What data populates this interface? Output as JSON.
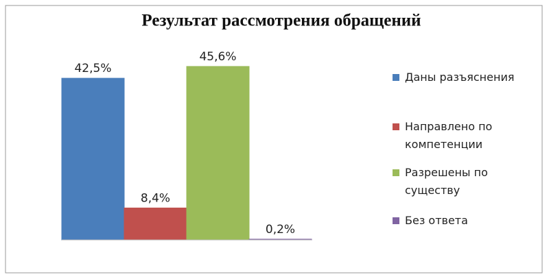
{
  "chart_data": {
    "type": "bar",
    "title": "Результат рассмотрения обращений",
    "series": [
      {
        "name": "Даны разъяснения",
        "color": "#4a7ebb",
        "values": [
          42.5
        ],
        "value_labels": [
          "42,5%"
        ]
      },
      {
        "name": "Направлено по компетенции",
        "color": "#c0504d",
        "values": [
          8.4
        ],
        "value_labels": [
          "8,4%"
        ]
      },
      {
        "name": "Разрешены по существу",
        "color": "#9bbb59",
        "values": [
          45.6
        ],
        "value_labels": [
          "45,6%"
        ]
      },
      {
        "name": "Без ответа",
        "color": "#8064a2",
        "values": [
          0.2
        ],
        "value_labels": [
          "0,2%"
        ]
      }
    ]
  }
}
